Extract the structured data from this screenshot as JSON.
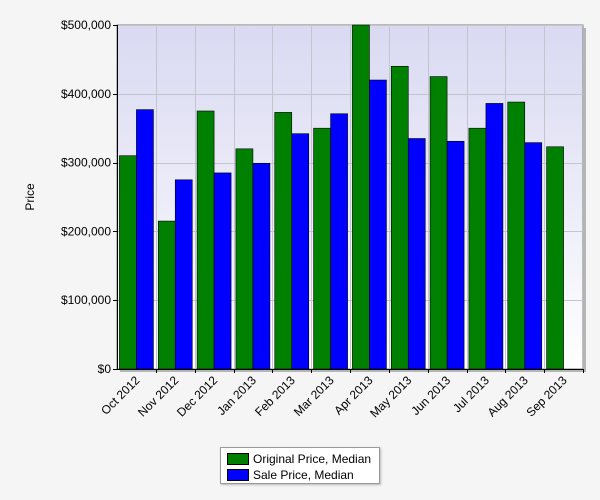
{
  "chart_data": {
    "type": "bar",
    "ylabel": "Price",
    "xlabel": "",
    "ylim": [
      0,
      500000
    ],
    "ytick_values": [
      0,
      100000,
      200000,
      300000,
      400000,
      500000
    ],
    "ytick_labels": [
      "$0",
      "$100,000",
      "$200,000",
      "$300,000",
      "$400,000",
      "$500,000"
    ],
    "categories": [
      "Oct 2012",
      "Nov 2012",
      "Dec 2012",
      "Jan 2013",
      "Feb 2013",
      "Mar 2013",
      "Apr 2013",
      "May 2013",
      "Jun 2013",
      "Jul 2013",
      "Aug 2013",
      "Sep 2013"
    ],
    "series": [
      {
        "name": "Original Price, Median",
        "color": "#008000",
        "values": [
          310000,
          215000,
          375000,
          320000,
          373000,
          350000,
          500000,
          440000,
          425000,
          350000,
          388000,
          323000
        ]
      },
      {
        "name": "Sale Price, Median",
        "color": "#0000ff",
        "values": [
          377000,
          275000,
          285000,
          299000,
          342000,
          371000,
          420000,
          335000,
          331000,
          386000,
          329000,
          null
        ]
      }
    ],
    "grid": true,
    "legend_position": "bottom-center"
  },
  "legend": {
    "items": [
      {
        "label": "Original Price, Median",
        "color": "#008000"
      },
      {
        "label": "Sale Price, Median",
        "color": "#0000ff"
      }
    ]
  }
}
